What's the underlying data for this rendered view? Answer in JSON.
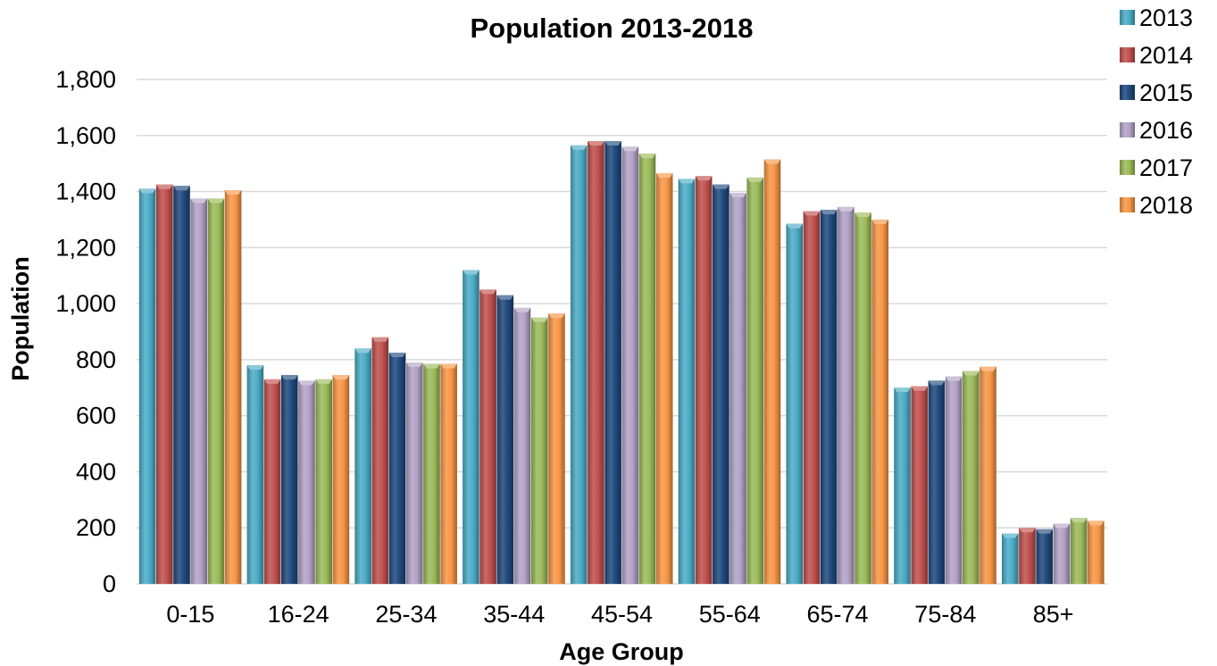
{
  "chart_data": {
    "type": "bar",
    "title": "Population 2013-2018",
    "xlabel": "Age Group",
    "ylabel": "Population",
    "ylim": [
      0,
      1800
    ],
    "yticks": [
      0,
      200,
      400,
      600,
      800,
      1000,
      1200,
      1400,
      1600,
      1800
    ],
    "ytick_labels": [
      "0",
      "200",
      "400",
      "600",
      "800",
      "1,000",
      "1,200",
      "1,400",
      "1,600",
      "1,800"
    ],
    "grid": true,
    "legend_position": "top-right",
    "categories": [
      "0-15",
      "16-24",
      "25-34",
      "35-44",
      "45-54",
      "55-64",
      "65-74",
      "75-84",
      "85+"
    ],
    "series": [
      {
        "name": "2013",
        "color": "#4bacc6",
        "values": [
          1410,
          780,
          840,
          1120,
          1565,
          1445,
          1285,
          700,
          180
        ]
      },
      {
        "name": "2014",
        "color": "#c0504d",
        "values": [
          1425,
          730,
          880,
          1050,
          1580,
          1455,
          1330,
          705,
          200
        ]
      },
      {
        "name": "2015",
        "color": "#1f497d",
        "values": [
          1420,
          745,
          825,
          1030,
          1580,
          1425,
          1335,
          725,
          195
        ]
      },
      {
        "name": "2016",
        "color": "#b3a2c7",
        "values": [
          1375,
          725,
          790,
          985,
          1560,
          1395,
          1345,
          740,
          215
        ]
      },
      {
        "name": "2017",
        "color": "#9bbb59",
        "values": [
          1375,
          730,
          785,
          950,
          1535,
          1450,
          1325,
          760,
          235
        ]
      },
      {
        "name": "2018",
        "color": "#f79646",
        "values": [
          1405,
          745,
          785,
          965,
          1465,
          1515,
          1300,
          775,
          225
        ]
      }
    ]
  }
}
